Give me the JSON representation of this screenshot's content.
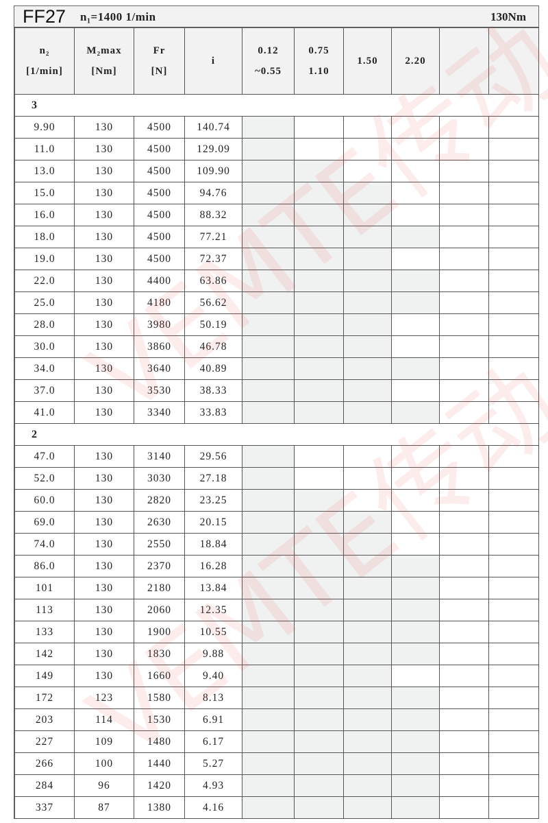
{
  "title": {
    "model": "FF27",
    "input_speed": "n₁=1400 1/min",
    "torque": "130Nm"
  },
  "header": {
    "n2": [
      "n₂",
      "[1/min]"
    ],
    "m2": [
      "M₂max",
      "[Nm]"
    ],
    "fr": [
      "Fr",
      "[N]"
    ],
    "i": "i",
    "power": [
      [
        "0.12",
        "~0.55"
      ],
      [
        "0.75",
        "1.10"
      ],
      [
        "1.50",
        ""
      ],
      [
        "2.20",
        ""
      ],
      [
        "",
        ""
      ],
      [
        "",
        ""
      ]
    ]
  },
  "watermark": "VEMTE传动",
  "shade_color": "#f0f1f1",
  "groups": [
    {
      "label": "3",
      "rows": [
        [
          "9.90",
          "130",
          "4500",
          "140.74",
          1
        ],
        [
          "11.0",
          "130",
          "4500",
          "129.09",
          1
        ],
        [
          "13.0",
          "130",
          "4500",
          "109.90",
          2
        ],
        [
          "15.0",
          "130",
          "4500",
          "94.76",
          3
        ],
        [
          "16.0",
          "130",
          "4500",
          "88.32",
          3
        ],
        [
          "18.0",
          "130",
          "4500",
          "77.21",
          4
        ],
        [
          "19.0",
          "130",
          "4500",
          "72.37",
          3
        ],
        [
          "22.0",
          "130",
          "4400",
          "63.86",
          4
        ],
        [
          "25.0",
          "130",
          "4180",
          "56.62",
          4
        ],
        [
          "28.0",
          "130",
          "3980",
          "50.19",
          3
        ],
        [
          "30.0",
          "130",
          "3860",
          "46.78",
          3
        ],
        [
          "34.0",
          "130",
          "3640",
          "40.89",
          4
        ],
        [
          "37.0",
          "130",
          "3530",
          "38.33",
          3
        ],
        [
          "41.0",
          "130",
          "3340",
          "33.83",
          4
        ]
      ]
    },
    {
      "label": "2",
      "rows": [
        [
          "47.0",
          "130",
          "3140",
          "29.56",
          1
        ],
        [
          "52.0",
          "130",
          "3030",
          "27.18",
          1
        ],
        [
          "60.0",
          "130",
          "2820",
          "23.25",
          2
        ],
        [
          "69.0",
          "130",
          "2630",
          "20.15",
          3
        ],
        [
          "74.0",
          "130",
          "2550",
          "18.84",
          3
        ],
        [
          "86.0",
          "130",
          "2370",
          "16.28",
          4
        ],
        [
          "101",
          "130",
          "2180",
          "13.84",
          4
        ],
        [
          "113",
          "130",
          "2060",
          "12.35",
          4
        ],
        [
          "133",
          "130",
          "1900",
          "10.55",
          4
        ],
        [
          "142",
          "130",
          "1830",
          "9.88",
          4
        ],
        [
          "149",
          "130",
          "1660",
          "9.40",
          3
        ],
        [
          "172",
          "123",
          "1580",
          "8.13",
          4
        ],
        [
          "203",
          "114",
          "1530",
          "6.91",
          4
        ],
        [
          "227",
          "109",
          "1480",
          "6.17",
          4
        ],
        [
          "266",
          "100",
          "1440",
          "5.27",
          4
        ],
        [
          "284",
          "96",
          "1420",
          "4.93",
          4
        ],
        [
          "337",
          "87",
          "1380",
          "4.16",
          4
        ]
      ]
    }
  ]
}
